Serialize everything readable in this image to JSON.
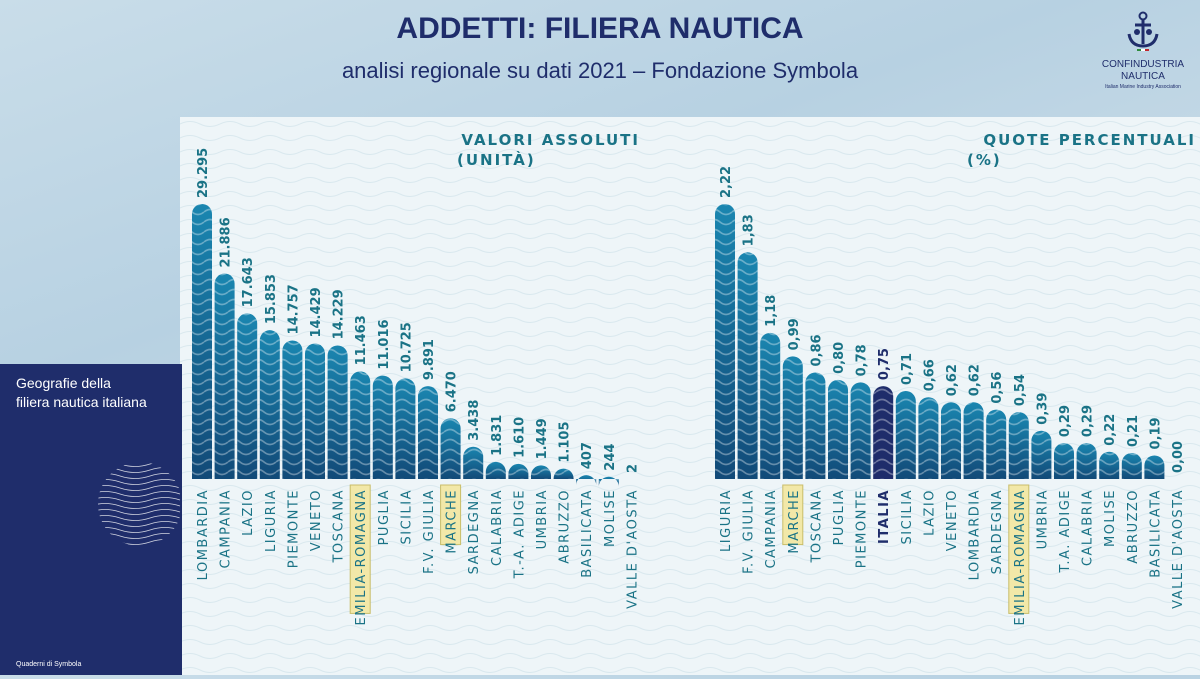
{
  "header": {
    "title": "ADDETTI: FILIERA NAUTICA",
    "subtitle": "analisi regionale su dati 2021 – Fondazione Symbola"
  },
  "logo": {
    "brand_line1": "CONFINDUSTRIA",
    "brand_line2": "NAUTICA",
    "tagline": "Italian Marine Industry Association",
    "icon": "anchor-icon"
  },
  "sidebar": {
    "caption_line1": "Geografie della",
    "caption_line2": "filiera nautica italiana",
    "footer": "Quaderni di Symbola"
  },
  "colors": {
    "navy": "#1f2d6b",
    "bar_top": "#1a7fa8",
    "bar_bottom": "#134f7d",
    "label_teal": "#1a7386",
    "highlight": "#f2e8a8"
  },
  "chart_data": [
    {
      "type": "bar",
      "title": "VALORI ASSOLUTI",
      "subtitle": "(UNITÀ)",
      "categories": [
        "LOMBARDIA",
        "CAMPANIA",
        "LAZIO",
        "LIGURIA",
        "PIEMONTE",
        "VENETO",
        "TOSCANA",
        "EMILIA-ROMAGNA",
        "PUGLIA",
        "SICILIA",
        "F.V. GIULIA",
        "MARCHE",
        "SARDEGNA",
        "CALABRIA",
        "T.-A. ADIGE",
        "UMBRIA",
        "ABRUZZO",
        "BASILICATA",
        "MOLISE",
        "VALLE D'AOSTA"
      ],
      "values": [
        29295,
        21886,
        17643,
        15853,
        14757,
        14429,
        14229,
        11463,
        11016,
        10725,
        9891,
        6470,
        3438,
        1831,
        1610,
        1449,
        1105,
        407,
        244,
        2
      ],
      "value_labels": [
        "29.295",
        "21.886",
        "17.643",
        "15.853",
        "14.757",
        "14.429",
        "14.229",
        "11.463",
        "11.016",
        "10.725",
        "9.891",
        "6.470",
        "3.438",
        "1.831",
        "1.610",
        "1.449",
        "1.105",
        "407",
        "244",
        "2"
      ],
      "highlighted": [
        "EMILIA-ROMAGNA",
        "MARCHE"
      ],
      "ylim": [
        0,
        29295
      ]
    },
    {
      "type": "bar",
      "title": "QUOTE PERCENTUALI",
      "subtitle": "(%)",
      "categories": [
        "LIGURIA",
        "F.V. GIULIA",
        "CAMPANIA",
        "MARCHE",
        "TOSCANA",
        "PUGLIA",
        "PIEMONTE",
        "ITALIA",
        "SICILIA",
        "LAZIO",
        "VENETO",
        "LOMBARDIA",
        "SARDEGNA",
        "EMILIA-ROMAGNA",
        "UMBRIA",
        "T.A. ADIGE",
        "CALABRIA",
        "MOLISE",
        "ABRUZZO",
        "BASILICATA",
        "VALLE D'AOSTA"
      ],
      "values": [
        2.22,
        1.83,
        1.18,
        0.99,
        0.86,
        0.8,
        0.78,
        0.75,
        0.71,
        0.66,
        0.62,
        0.62,
        0.56,
        0.54,
        0.39,
        0.29,
        0.29,
        0.22,
        0.21,
        0.19,
        0.0
      ],
      "value_labels": [
        "2,22",
        "1,83",
        "1,18",
        "0,99",
        "0,86",
        "0,80",
        "0,78",
        "0,75",
        "0,71",
        "0,66",
        "0,62",
        "0,62",
        "0,56",
        "0,54",
        "0,39",
        "0,29",
        "0,29",
        "0,22",
        "0,21",
        "0,19",
        "0,00"
      ],
      "highlighted": [
        "MARCHE",
        "EMILIA-ROMAGNA"
      ],
      "reference_category": "ITALIA",
      "ylim": [
        0,
        2.22
      ]
    }
  ]
}
